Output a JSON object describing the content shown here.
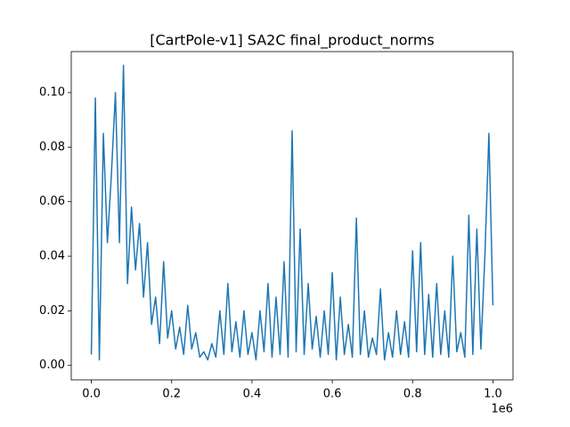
{
  "chart_data": {
    "type": "line",
    "title": "[CartPole-v1] SA2C final_product_norms",
    "x_offset_label": "1e6",
    "x": [
      0,
      10000,
      20000,
      30000,
      40000,
      50000,
      60000,
      70000,
      80000,
      90000,
      100000,
      110000,
      120000,
      130000,
      140000,
      150000,
      160000,
      170000,
      180000,
      190000,
      200000,
      210000,
      220000,
      230000,
      240000,
      250000,
      260000,
      270000,
      280000,
      290000,
      300000,
      310000,
      320000,
      330000,
      340000,
      350000,
      360000,
      370000,
      380000,
      390000,
      400000,
      410000,
      420000,
      430000,
      440000,
      450000,
      460000,
      470000,
      480000,
      490000,
      500000,
      510000,
      520000,
      530000,
      540000,
      550000,
      560000,
      570000,
      580000,
      590000,
      600000,
      610000,
      620000,
      630000,
      640000,
      650000,
      660000,
      670000,
      680000,
      690000,
      700000,
      710000,
      720000,
      730000,
      740000,
      750000,
      760000,
      770000,
      780000,
      790000,
      800000,
      810000,
      820000,
      830000,
      840000,
      850000,
      860000,
      870000,
      880000,
      890000,
      900000,
      910000,
      920000,
      930000,
      940000,
      950000,
      960000,
      970000,
      980000,
      990000,
      1000000
    ],
    "series": [
      {
        "name": "final_product_norms",
        "color": "#1f77b4",
        "values": [
          0.004,
          0.098,
          0.002,
          0.085,
          0.045,
          0.07,
          0.1,
          0.045,
          0.11,
          0.03,
          0.058,
          0.035,
          0.052,
          0.025,
          0.045,
          0.015,
          0.025,
          0.008,
          0.038,
          0.01,
          0.02,
          0.006,
          0.014,
          0.004,
          0.022,
          0.006,
          0.012,
          0.003,
          0.005,
          0.002,
          0.008,
          0.003,
          0.02,
          0.004,
          0.03,
          0.005,
          0.016,
          0.003,
          0.02,
          0.004,
          0.012,
          0.002,
          0.02,
          0.005,
          0.03,
          0.003,
          0.025,
          0.004,
          0.038,
          0.003,
          0.086,
          0.005,
          0.05,
          0.004,
          0.03,
          0.006,
          0.018,
          0.003,
          0.02,
          0.004,
          0.034,
          0.002,
          0.025,
          0.004,
          0.015,
          0.003,
          0.054,
          0.004,
          0.02,
          0.003,
          0.01,
          0.004,
          0.028,
          0.002,
          0.012,
          0.003,
          0.02,
          0.004,
          0.016,
          0.003,
          0.042,
          0.005,
          0.045,
          0.004,
          0.026,
          0.003,
          0.03,
          0.004,
          0.02,
          0.003,
          0.04,
          0.005,
          0.012,
          0.003,
          0.055,
          0.004,
          0.05,
          0.006,
          0.04,
          0.085,
          0.022
        ]
      }
    ],
    "xlim": [
      -50000,
      1050000
    ],
    "xticks": [
      {
        "value": 0,
        "label": "0.0"
      },
      {
        "value": 200000,
        "label": "0.2"
      },
      {
        "value": 400000,
        "label": "0.4"
      },
      {
        "value": 600000,
        "label": "0.6"
      },
      {
        "value": 800000,
        "label": "0.8"
      },
      {
        "value": 1000000,
        "label": "1.0"
      }
    ],
    "ylim": [
      -0.0053,
      0.115
    ],
    "yticks": [
      {
        "value": 0,
        "label": "0.00"
      },
      {
        "value": 0.02,
        "label": "0.02"
      },
      {
        "value": 0.04,
        "label": "0.04"
      },
      {
        "value": 0.06,
        "label": "0.06"
      },
      {
        "value": 0.08,
        "label": "0.08"
      },
      {
        "value": 0.1,
        "label": "0.10"
      }
    ],
    "grid": false
  }
}
